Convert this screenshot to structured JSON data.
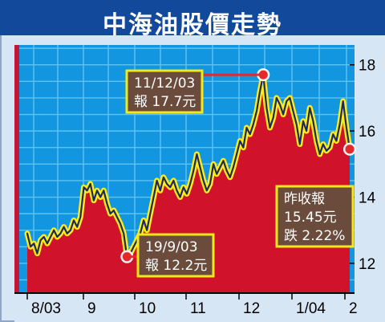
{
  "title": "中海油股價走勢",
  "colors": {
    "title_bg": "#12499a",
    "plot_bg": "#1296e0",
    "grid": "#5fc3f1",
    "area_fill": "#d0122b",
    "line": "#1c2a63",
    "line_glow": "#ffec17",
    "label_bg": "#6b4c3c",
    "label_border": "#f3e81a"
  },
  "chart_data": {
    "type": "area",
    "title": "中海油股價走勢",
    "xlabel": "",
    "ylabel": "",
    "x_tick_labels": [
      "8/03",
      "9",
      "10",
      "11",
      "12",
      "1/04",
      "2"
    ],
    "y_ticks": [
      12,
      14,
      16,
      18
    ],
    "ylim": [
      11.1,
      18.6
    ],
    "grid": true,
    "series": [
      {
        "values": [
          12.9,
          12.5,
          12.6,
          12.3,
          12.7,
          12.8,
          12.6,
          12.8,
          13.0,
          12.8,
          12.9,
          13.1,
          12.9,
          13.0,
          13.3,
          13.1,
          13.4,
          14.3,
          14.2,
          14.4,
          13.9,
          14.2,
          14.0,
          14.2,
          13.8,
          13.5,
          13.6,
          13.4,
          13.2,
          12.9,
          12.2,
          12.3,
          12.5,
          12.7,
          12.9,
          13.3,
          13.0,
          13.5,
          14.0,
          14.5,
          14.2,
          14.6,
          14.4,
          14.3,
          14.5,
          14.2,
          14.0,
          14.3,
          14.1,
          14.4,
          14.8,
          15.3,
          14.9,
          14.5,
          14.2,
          14.4,
          15.0,
          14.7,
          14.9,
          15.1,
          14.8,
          14.6,
          14.9,
          15.3,
          15.7,
          15.5,
          16.1,
          15.9,
          16.2,
          16.6,
          17.2,
          17.7,
          16.7,
          16.1,
          16.4,
          17.0,
          16.8,
          16.5,
          16.9,
          17.0,
          16.6,
          16.2,
          15.6,
          16.3,
          16.0,
          16.7,
          16.3,
          15.7,
          15.3,
          15.6,
          15.4,
          15.5,
          15.9,
          15.7,
          16.2,
          16.9,
          16.1,
          15.45
        ]
      }
    ],
    "annotations": [
      {
        "date": "11/12/03",
        "label": "報 17.7元",
        "value": 17.7,
        "point_index": 71
      },
      {
        "date": "19/9/03",
        "label": "報 12.2元",
        "value": 12.2,
        "point_index": 30
      },
      {
        "lines": [
          "昨收報",
          "15.45元",
          "跌 2.22%"
        ],
        "value": 15.45,
        "point_index": 97
      }
    ]
  }
}
